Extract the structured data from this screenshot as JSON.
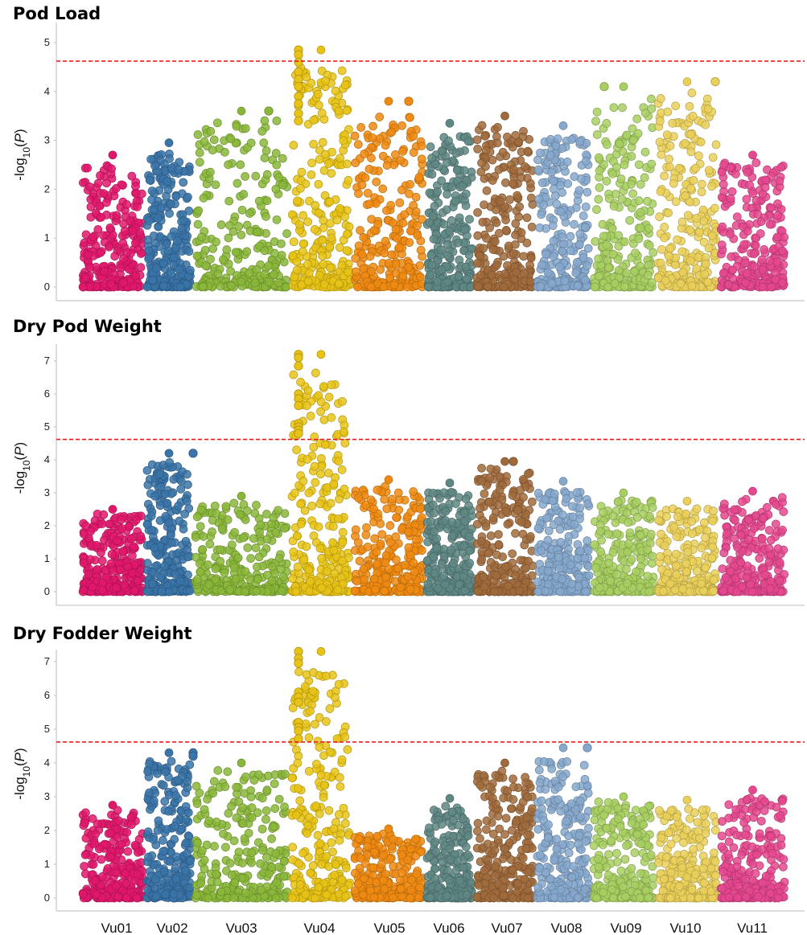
{
  "chart_data": [
    {
      "type": "scatter",
      "title": "Pod Load",
      "ylabel": "-log10(P)",
      "ylim": [
        0,
        5
      ],
      "yticks": [
        0,
        1,
        2,
        3,
        4,
        5
      ],
      "threshold": 4.62,
      "categories": [
        "Vu01",
        "Vu02",
        "Vu03",
        "Vu04",
        "Vu05",
        "Vu06",
        "Vu07",
        "Vu08",
        "Vu09",
        "Vu10",
        "Vu11"
      ],
      "chrom_peaks": [
        2.7,
        2.95,
        3.6,
        4.85,
        3.8,
        3.35,
        3.5,
        3.3,
        4.1,
        4.2,
        2.7
      ],
      "highlighted_points": [
        {
          "chrom": "Vu04",
          "values": [
            4.85,
            4.75,
            4.6,
            4.4,
            4.25,
            4.1,
            3.9,
            3.75,
            3.55,
            3.4
          ]
        },
        {
          "chrom": "Vu09",
          "values": [
            4.1
          ]
        },
        {
          "chrom": "Vu10",
          "values": [
            4.2
          ]
        },
        {
          "chrom": "Vu03",
          "values": [
            3.6
          ]
        },
        {
          "chrom": "Vu05",
          "values": [
            3.8
          ]
        }
      ]
    },
    {
      "type": "scatter",
      "title": "Dry Pod Weight",
      "ylabel": "-log10(P)",
      "ylim": [
        0,
        7.5
      ],
      "yticks": [
        0,
        1,
        2,
        3,
        4,
        5,
        6,
        7
      ],
      "threshold": 4.62,
      "categories": [
        "Vu01",
        "Vu02",
        "Vu03",
        "Vu04",
        "Vu05",
        "Vu06",
        "Vu07",
        "Vu08",
        "Vu09",
        "Vu10",
        "Vu11"
      ],
      "chrom_peaks": [
        2.5,
        4.2,
        2.9,
        7.2,
        3.4,
        3.3,
        3.95,
        3.35,
        3.0,
        2.75,
        3.05
      ],
      "highlighted_points": [
        {
          "chrom": "Vu04",
          "values": [
            7.2,
            7.1,
            6.85,
            6.0,
            5.85,
            5.65,
            5.1,
            5.0,
            4.9,
            4.8
          ]
        },
        {
          "chrom": "Vu02",
          "values": [
            4.2
          ]
        },
        {
          "chrom": "Vu07",
          "values": [
            3.95
          ]
        }
      ]
    },
    {
      "type": "scatter",
      "title": "Dry Fodder Weight",
      "ylabel": "-log10(P)",
      "ylim": [
        0,
        7.5
      ],
      "yticks": [
        0,
        1,
        2,
        3,
        4,
        5,
        6,
        7
      ],
      "threshold": 4.62,
      "categories": [
        "Vu01",
        "Vu02",
        "Vu03",
        "Vu04",
        "Vu05",
        "Vu06",
        "Vu07",
        "Vu08",
        "Vu09",
        "Vu10",
        "Vu11"
      ],
      "chrom_peaks": [
        2.75,
        4.3,
        4.0,
        7.3,
        2.05,
        2.95,
        4.0,
        4.45,
        3.0,
        2.9,
        3.2
      ],
      "highlighted_points": [
        {
          "chrom": "Vu04",
          "values": [
            7.3,
            7.1,
            6.95,
            6.1,
            5.95,
            5.8,
            5.2,
            5.05,
            4.95,
            4.72
          ]
        },
        {
          "chrom": "Vu08",
          "values": [
            4.45
          ]
        },
        {
          "chrom": "Vu02",
          "values": [
            4.3,
            4.2
          ]
        }
      ]
    }
  ],
  "colors": {
    "Vu01": "#e0186c",
    "Vu02": "#3a74a8",
    "Vu03": "#8ab73a",
    "Vu04": "#e8c316",
    "Vu05": "#ee8a12",
    "Vu06": "#5f8784",
    "Vu07": "#a06b3c",
    "Vu08": "#86a8cc",
    "Vu09": "#a8cf62",
    "Vu10": "#ead05a",
    "Vu11": "#e5488e",
    "threshold": "#e02020"
  }
}
